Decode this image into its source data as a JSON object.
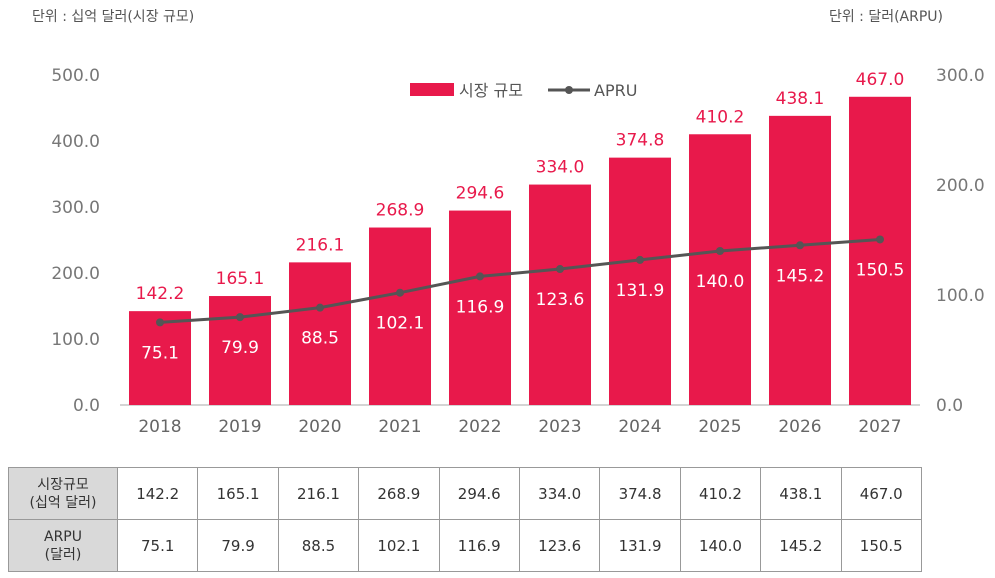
{
  "unit_left": "단위 : 십억 달러(시장 규모)",
  "unit_right": "단위 : 달러(ARPU)",
  "chart_data": {
    "type": "bar+line",
    "categories": [
      "2018",
      "2019",
      "2020",
      "2021",
      "2022",
      "2023",
      "2024",
      "2025",
      "2026",
      "2027"
    ],
    "series": [
      {
        "name": "시장 규모",
        "type": "bar",
        "axis": "left",
        "color": "#e8194b",
        "values": [
          142.2,
          165.1,
          216.1,
          268.9,
          294.6,
          334.0,
          374.8,
          410.2,
          438.1,
          467.0
        ]
      },
      {
        "name": "APRU",
        "type": "line",
        "axis": "right",
        "color": "#555555",
        "values": [
          75.1,
          79.9,
          88.5,
          102.1,
          116.9,
          123.6,
          131.9,
          140.0,
          145.2,
          150.5
        ]
      }
    ],
    "left_axis": {
      "ylim": [
        0,
        500
      ],
      "ticks": [
        "0.0",
        "100.0",
        "200.0",
        "300.0",
        "400.0",
        "500.0"
      ]
    },
    "right_axis": {
      "ylim": [
        0,
        300
      ],
      "ticks": [
        "0.0",
        "100.0",
        "200.0",
        "300.0"
      ]
    },
    "legend": "top-center",
    "grid": false
  },
  "table": {
    "rows": [
      {
        "header": [
          "시장규모",
          "(십억 달러)"
        ],
        "values": [
          "142.2",
          "165.1",
          "216.1",
          "268.9",
          "294.6",
          "334.0",
          "374.8",
          "410.2",
          "438.1",
          "467.0"
        ]
      },
      {
        "header": [
          "ARPU",
          "(달러)"
        ],
        "values": [
          "75.1",
          "79.9",
          "88.5",
          "102.1",
          "116.9",
          "123.6",
          "131.9",
          "140.0",
          "145.2",
          "150.5"
        ]
      }
    ]
  }
}
